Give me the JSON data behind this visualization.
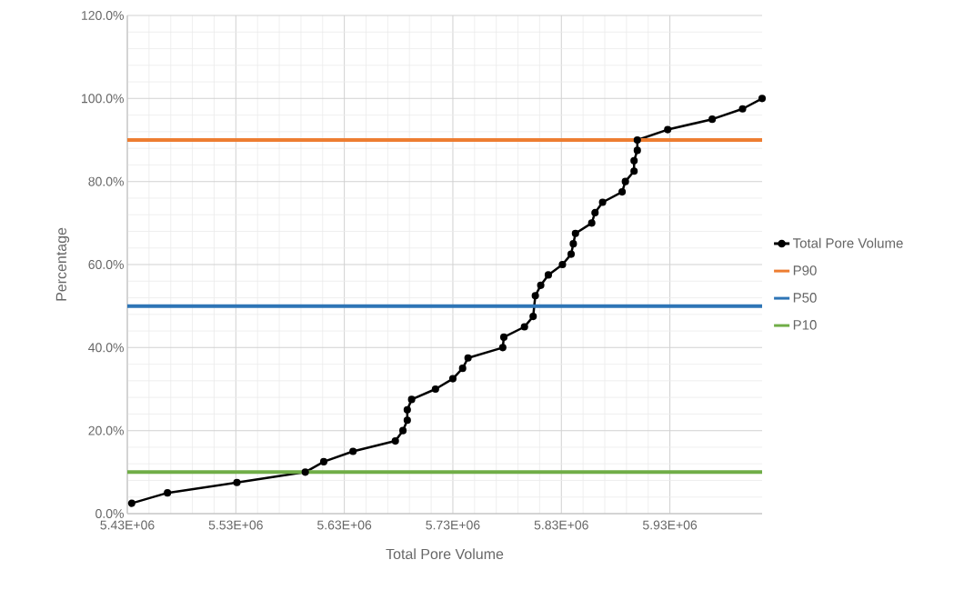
{
  "chart_data": {
    "type": "line",
    "xlabel": "Total Pore Volume",
    "ylabel": "Percentage",
    "x": [
      5434000,
      5467000,
      5531000,
      5594000,
      5611000,
      5638000,
      5677000,
      5684000,
      5688000,
      5688000,
      5692000,
      5714000,
      5730000,
      5739000,
      5744000,
      5776000,
      5777000,
      5796000,
      5804000,
      5806000,
      5811000,
      5818000,
      5831000,
      5839000,
      5841000,
      5843000,
      5858000,
      5861000,
      5868000,
      5886000,
      5889000,
      5897000,
      5897000,
      5900000,
      5900000,
      5928000,
      5969000,
      5997000,
      6015000
    ],
    "series": [
      {
        "name": "Total Pore Volume",
        "color": "#000000",
        "values": [
          2.5,
          5,
          7.5,
          10,
          12.5,
          15,
          17.5,
          20,
          22.5,
          25,
          27.5,
          30,
          32.5,
          35,
          37.5,
          40,
          42.5,
          45,
          47.5,
          52.5,
          55,
          57.5,
          60,
          62.5,
          65,
          67.5,
          70,
          72.5,
          75,
          77.5,
          80,
          82.5,
          85,
          87.5,
          90,
          92.5,
          95,
          97.5,
          100
        ]
      }
    ],
    "ref_lines": [
      {
        "axis": "y",
        "value": 90,
        "label": "P90",
        "color": "#ed7d31"
      },
      {
        "axis": "y",
        "value": 50,
        "label": "P50",
        "color": "#2e75b6"
      },
      {
        "axis": "y",
        "value": 10,
        "label": "P10",
        "color": "#70ad47"
      }
    ],
    "xlim": [
      5430000,
      6015000
    ],
    "xticks": [
      {
        "value": 5430000,
        "label": "5.43E+06"
      },
      {
        "value": 5530000,
        "label": "5.53E+06"
      },
      {
        "value": 5630000,
        "label": "5.63E+06"
      },
      {
        "value": 5730000,
        "label": "5.73E+06"
      },
      {
        "value": 5830000,
        "label": "5.83E+06"
      },
      {
        "value": 5930000,
        "label": "5.93E+06"
      }
    ],
    "ylim": [
      0,
      120
    ],
    "yticks": [
      {
        "value": 0,
        "label": "0.0%"
      },
      {
        "value": 20,
        "label": "20.0%"
      },
      {
        "value": 40,
        "label": "40.0%"
      },
      {
        "value": 60,
        "label": "60.0%"
      },
      {
        "value": 80,
        "label": "80.0%"
      },
      {
        "value": 100,
        "label": "100.0%"
      },
      {
        "value": 120,
        "label": "120.0%"
      }
    ],
    "grid": true,
    "legend": "right",
    "marker": "circle",
    "line_style": "solid"
  }
}
